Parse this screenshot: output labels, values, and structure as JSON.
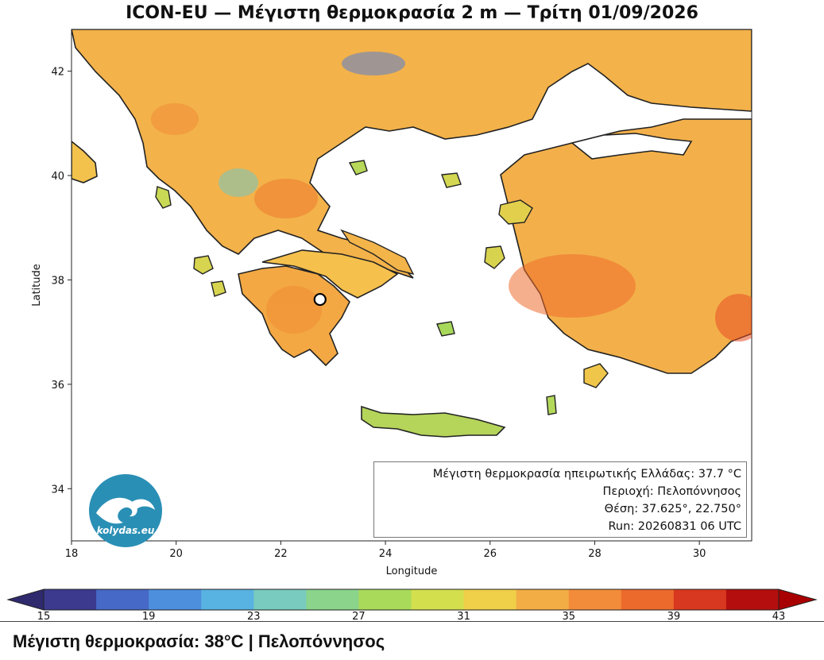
{
  "title": "ICON-EU — Μέγιστη θερμοκρασία 2 m — Τρίτη 01/09/2026",
  "map": {
    "x_axis_label": "Longitude",
    "y_axis_label": "Latitude",
    "lon_range": [
      18,
      31
    ],
    "lat_range": [
      33,
      42.8
    ],
    "lon_ticks": [
      "18",
      "20",
      "22",
      "24",
      "26",
      "28",
      "30"
    ],
    "lat_ticks": [
      "34",
      "36",
      "38",
      "40",
      "42"
    ],
    "marker": {
      "lat": 37.625,
      "lon": 22.75
    },
    "sea_color": "#ffffff",
    "land_warm_color": "#f5a442",
    "land_mid_color": "#f7d050",
    "land_cool_color": "#8fce56"
  },
  "info_box": {
    "line1": "Μέγιστη θερμοκρασία ηπειρωτικής Ελλάδας: 37.7 °C",
    "line2": "Περιοχή: Πελοπόννησος",
    "line3": "Θέση: 37.625°, 22.750°",
    "line4": "Run: 20260831 06 UTC"
  },
  "logo": {
    "text": "kolydas.eu",
    "color": "#2a8fb5"
  },
  "colorbar": {
    "colors": [
      "#3b3a8f",
      "#4668c6",
      "#4d8fdc",
      "#58b2e2",
      "#79cbbf",
      "#8ad48b",
      "#a9da5a",
      "#d3df4d",
      "#f0cf49",
      "#f3ad45",
      "#f28c3a",
      "#ec6a2c",
      "#d8381f",
      "#b40e0e"
    ],
    "tick_labels": [
      "15",
      "19",
      "23",
      "27",
      "31",
      "35",
      "39",
      "43"
    ]
  },
  "footer": {
    "text": "Μέγιστη θερμοκρασία: 38°C | Πελοπόννησος"
  }
}
